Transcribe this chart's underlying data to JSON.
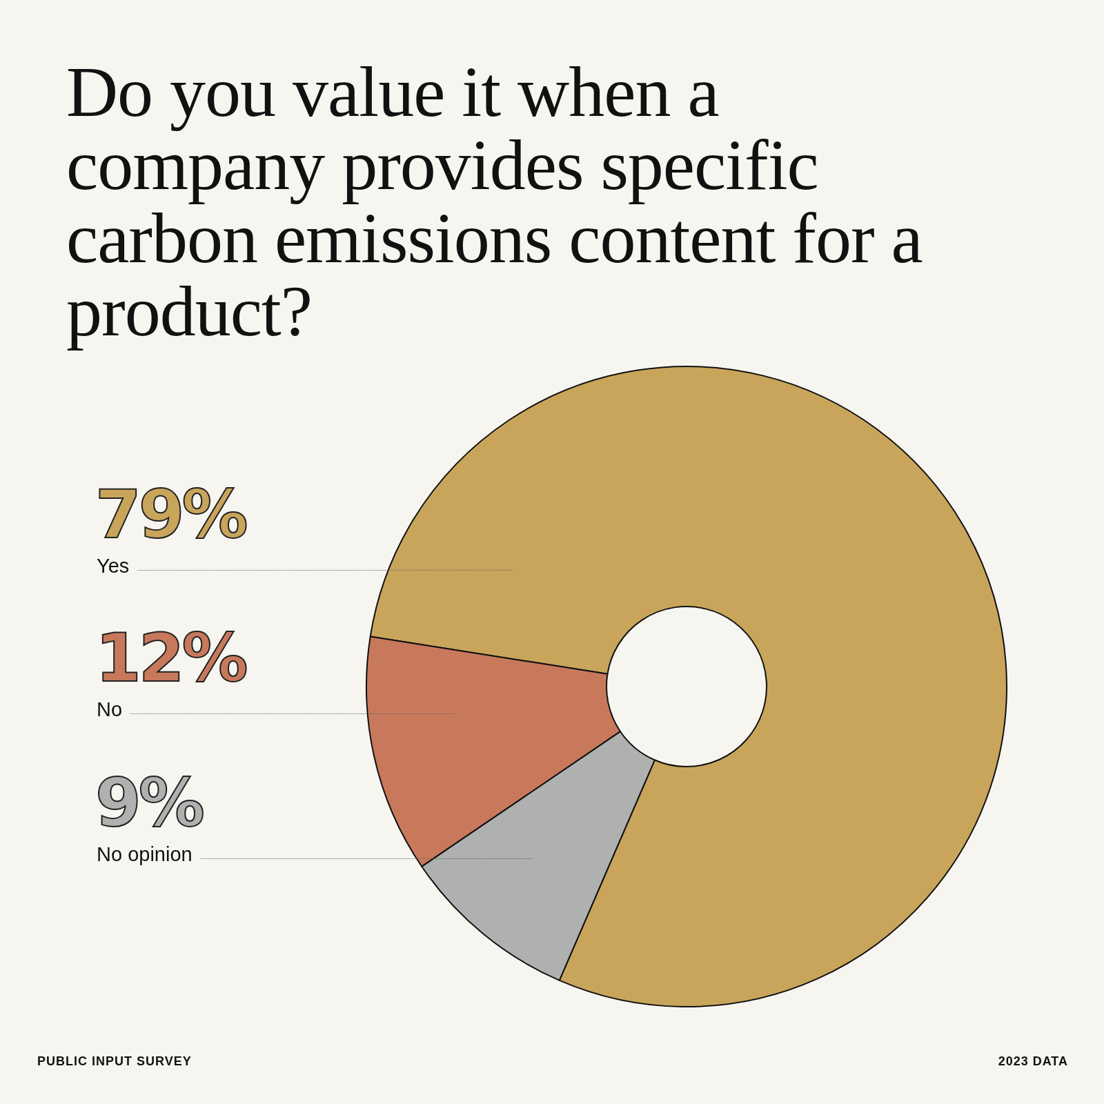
{
  "chart_data": {
    "type": "donut",
    "title": "Do you value it when a company provides specific carbon emissions content for a product?",
    "categories": [
      "Yes",
      "No",
      "No opinion"
    ],
    "values": [
      79,
      12,
      9
    ],
    "colors": [
      "#c9a55c",
      "#c8795c",
      "#aeb1b0"
    ],
    "value_labels": [
      "79%",
      "12%",
      "9%"
    ],
    "legend": false,
    "annotations": [
      "PUBLIC INPUT SURVEY",
      "2023 DATA"
    ]
  }
}
